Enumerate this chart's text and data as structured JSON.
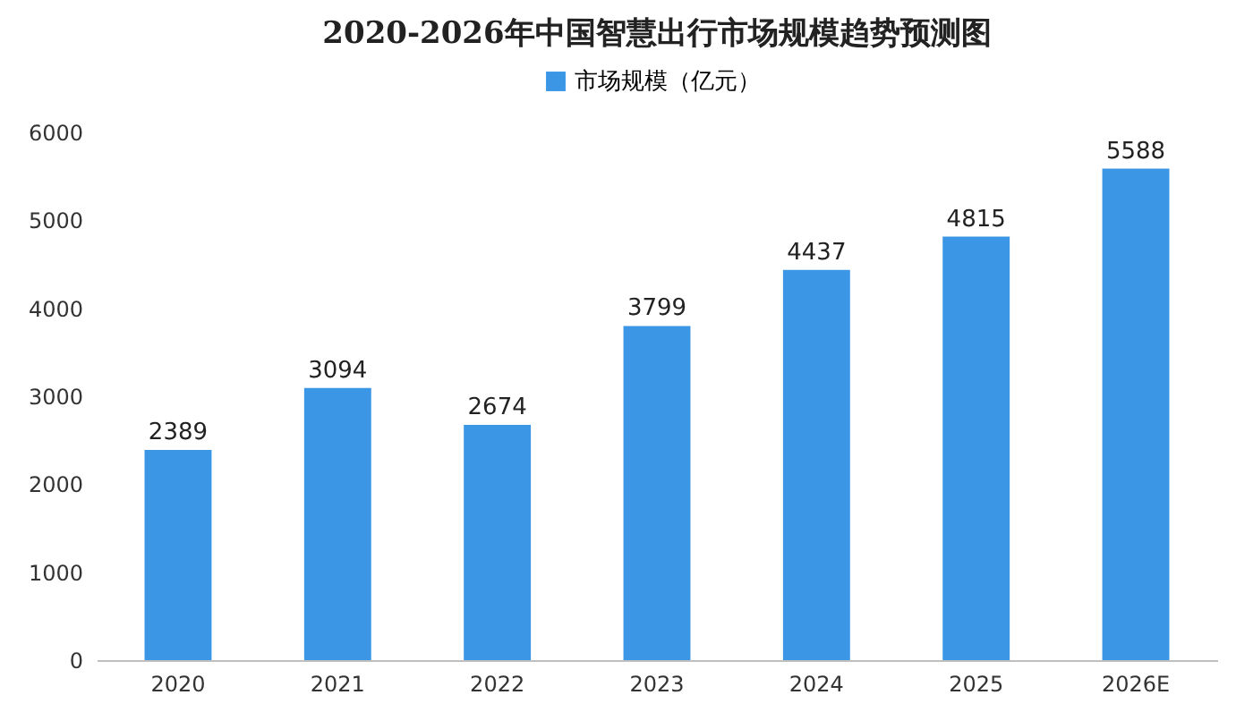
{
  "chart_data": {
    "type": "bar",
    "title": "2020-2026年中国智慧出行市场规模趋势预测图",
    "categories": [
      "2020",
      "2021",
      "2022",
      "2023",
      "2024",
      "2025",
      "2026E"
    ],
    "series": [
      {
        "name": "市场规模（亿元）",
        "color": "#3b97e6",
        "values": [
          2389,
          3094,
          2674,
          3799,
          4437,
          4815,
          5588
        ]
      }
    ],
    "ylim": [
      0,
      6000
    ],
    "yticks": [
      0,
      1000,
      2000,
      3000,
      4000,
      5000,
      6000
    ],
    "grid": false,
    "legend": "top",
    "data_labels": true
  }
}
